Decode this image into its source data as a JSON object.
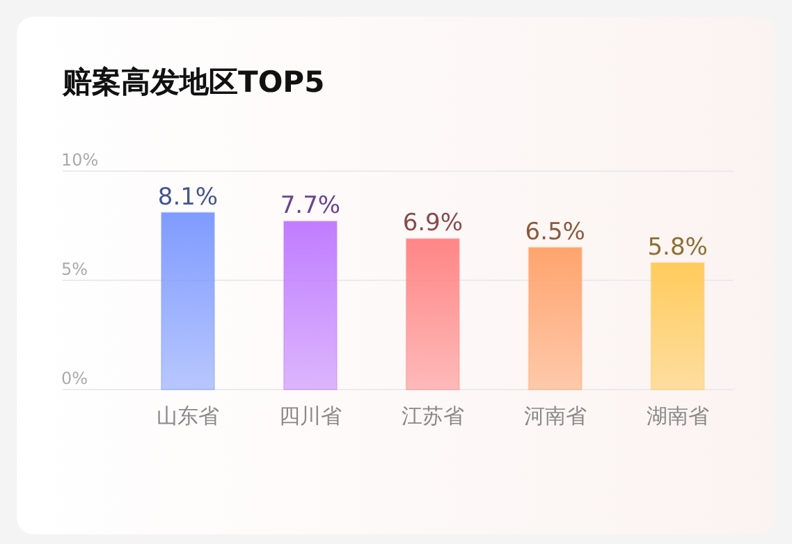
{
  "chart_data": {
    "type": "bar",
    "title": "赔案高发地区TOP5",
    "categories": [
      "山东省",
      "四川省",
      "江苏省",
      "河南省",
      "湖南省"
    ],
    "values": [
      8.1,
      7.7,
      6.9,
      6.5,
      5.8
    ],
    "value_labels": [
      "8.1%",
      "7.7%",
      "6.9%",
      "6.5%",
      "5.8%"
    ],
    "colors": [
      "#7f9bff",
      "#c07dff",
      "#ff8686",
      "#ffa46e",
      "#ffcb5c"
    ],
    "ylim": [
      0,
      10
    ],
    "yticks": [
      {
        "value": 0,
        "label": "0%"
      },
      {
        "value": 5,
        "label": "5%"
      },
      {
        "value": 10,
        "label": "10%"
      }
    ],
    "grid": "y"
  }
}
